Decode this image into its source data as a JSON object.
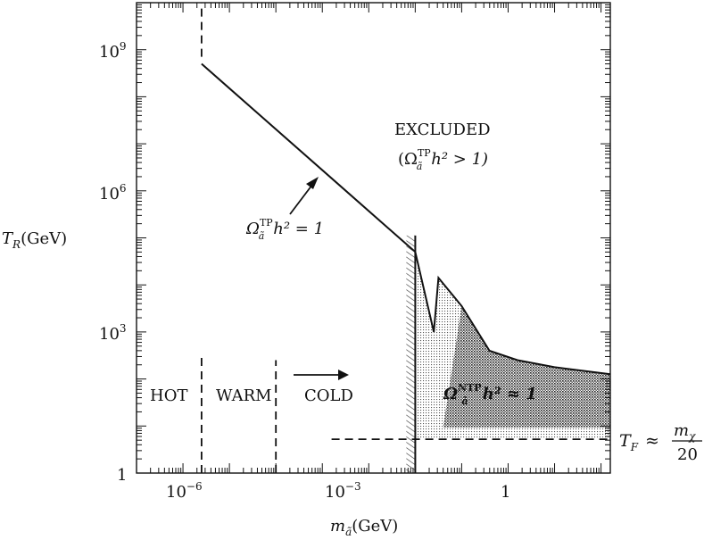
{
  "chart_data": {
    "type": "line",
    "xlabel_base": "m",
    "xlabel_sub": "ã",
    "xlabel_unit": "(GeV)",
    "ylabel_base": "T",
    "ylabel_sub": "R",
    "ylabel_unit": "(GeV)",
    "x_log": true,
    "y_log": true,
    "xlim_log10": [
      -7.0,
      3.2
    ],
    "ylim_log10": [
      0.0,
      10.0
    ],
    "x_ticks": [
      {
        "exp": -6,
        "label_base": "10",
        "label_exp": "−6"
      },
      {
        "exp": -3,
        "label_base": "10",
        "label_exp": "−3"
      },
      {
        "exp": 0,
        "label_base": "1",
        "label_exp": ""
      }
    ],
    "y_ticks": [
      {
        "exp": 0,
        "label_base": "1",
        "label_exp": ""
      },
      {
        "exp": 3,
        "label_base": "10",
        "label_exp": "3"
      },
      {
        "exp": 6,
        "label_base": "10",
        "label_exp": "6"
      },
      {
        "exp": 9,
        "label_base": "10",
        "label_exp": "9"
      }
    ],
    "series": [
      {
        "role": "thermal-production-bound",
        "style": "solid",
        "x_log10": [
          -5.6,
          -1.0
        ],
        "y_log10": [
          8.7,
          4.7
        ]
      },
      {
        "role": "non-thermal-production-bound",
        "style": "solid",
        "x_log10": [
          -1.0,
          -0.5,
          0.0,
          -0.6,
          0.6,
          1.2,
          2.0,
          3.2
        ],
        "y_log10": [
          4.7,
          4.15,
          3.55,
          3.0,
          2.6,
          2.4,
          2.25,
          2.1
        ]
      },
      {
        "role": "hot-warm-boundary",
        "style": "dashed",
        "x_log10": [
          -5.6,
          -5.6
        ],
        "y_log10": [
          0.0,
          2.45
        ]
      },
      {
        "role": "hot-warm-upper-boundary",
        "style": "dashed",
        "x_log10": [
          -5.6,
          -5.6
        ],
        "y_log10": [
          8.85,
          10.0
        ]
      },
      {
        "role": "warm-cold-boundary",
        "style": "dashed",
        "x_log10": [
          -4.0,
          -4.0
        ],
        "y_log10": [
          0.0,
          2.4
        ]
      },
      {
        "role": "freeze-out-temperature",
        "style": "dashed",
        "x_log10": [
          -2.8,
          3.2
        ],
        "y_log10": [
          0.72,
          0.72
        ]
      },
      {
        "role": "lower-mass-bound",
        "style": "solid-hatched",
        "x_log10": [
          -1.0,
          -1.0
        ],
        "y_log10": [
          0.0,
          5.05
        ]
      }
    ],
    "annotations": {
      "excluded_line1": "EXCLUDED",
      "excluded_line2_open": "(Ω",
      "excluded_line2_sup": "TP",
      "excluded_line2_sub": "ã",
      "excluded_line2_rest": "h² > 1)",
      "tp_curve_omega": "Ω",
      "tp_curve_sup": "TP",
      "tp_curve_sub": "ã",
      "tp_curve_rest": "h² = 1",
      "ntp_omega": "Ω",
      "ntp_sup": "NTP",
      "ntp_sub": "ã",
      "ntp_rest": "h² ≈ 1",
      "hot": "HOT",
      "warm": "WARM",
      "cold": "COLD",
      "tf_base": "T",
      "tf_sub": "F",
      "tf_approx": "≈",
      "tf_num_base": "m",
      "tf_num_sub": "χ",
      "tf_den": "20"
    }
  }
}
